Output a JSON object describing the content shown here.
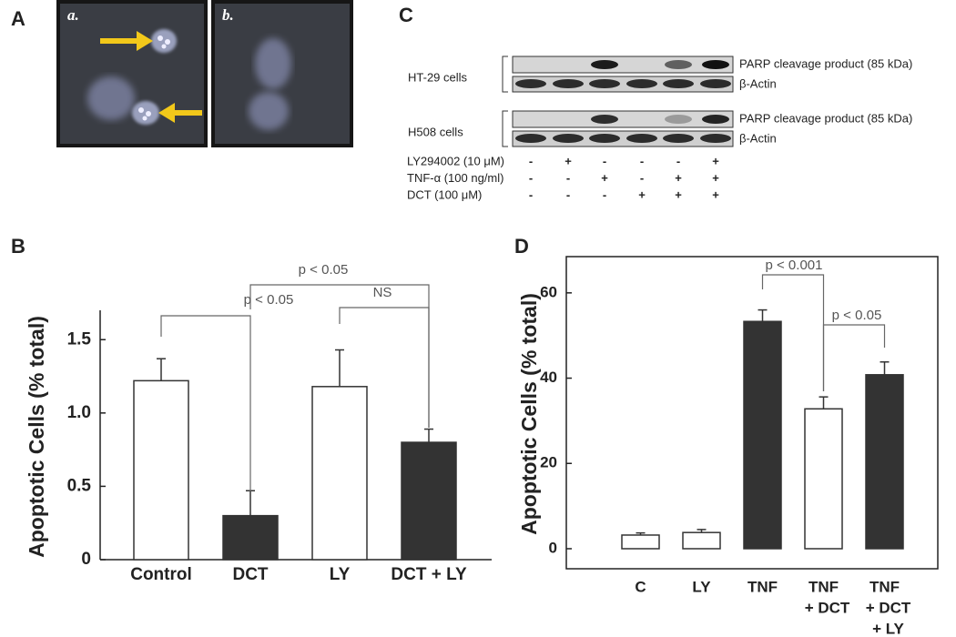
{
  "panels": {
    "A": {
      "label": "A",
      "images": [
        "a.",
        "b."
      ]
    },
    "C": {
      "label": "C",
      "cell_lines": [
        {
          "name": "HT-29 cells",
          "bands": [
            "PARP cleavage product (85 kDa)",
            "β-Actin"
          ]
        },
        {
          "name": "H508 cells",
          "bands": [
            "PARP cleavage product (85 kDa)",
            "β-Actin"
          ]
        }
      ],
      "treatments": [
        {
          "label": "LY294002 (10 μM)",
          "signs": [
            "-",
            "+",
            "-",
            "-",
            "-",
            "+"
          ]
        },
        {
          "label": "TNF-α (100 ng/ml)",
          "signs": [
            "-",
            "-",
            "+",
            "-",
            "+",
            "+"
          ]
        },
        {
          "label": "DCT (100 μM)",
          "signs": [
            "-",
            "-",
            "-",
            "+",
            "+",
            "+"
          ]
        }
      ]
    }
  },
  "chart_data": [
    {
      "type": "bar",
      "panel": "B",
      "ylabel": "Apoptotic Cells (% total)",
      "categories": [
        [
          "Control"
        ],
        [
          "DCT"
        ],
        [
          "LY"
        ],
        [
          "DCT + LY"
        ]
      ],
      "values": [
        1.22,
        0.3,
        1.18,
        0.8
      ],
      "errors": [
        0.15,
        0.17,
        0.25,
        0.09
      ],
      "colors": [
        "#ffffff",
        "#333333",
        "#ffffff",
        "#333333"
      ],
      "ylim": [
        0,
        1.7
      ],
      "yticks": [
        0,
        0.5,
        {
          "value": 1,
          "label": "1.0"
        },
        1.5
      ],
      "brackets": [
        "p < 0.05",
        "p < 0.05",
        "NS"
      ],
      "frame": false
    },
    {
      "type": "bar",
      "panel": "D",
      "ylabel": "Apoptotic Cells (% total)",
      "categories": [
        [
          "C"
        ],
        [
          "LY"
        ],
        [
          "TNF"
        ],
        [
          "TNF",
          "+ DCT"
        ],
        [
          "TNF",
          "+ DCT",
          "+ LY"
        ]
      ],
      "values": [
        3.2,
        3.8,
        53.3,
        32.8,
        40.8
      ],
      "errors": [
        0.5,
        0.7,
        2.7,
        2.8,
        3.0
      ],
      "colors": [
        "#ffffff",
        "#ffffff",
        "#333333",
        "#ffffff",
        "#333333"
      ],
      "ylim": [
        -4.7,
        68.5
      ],
      "yticks": [
        0,
        20,
        40,
        60
      ],
      "brackets": [
        "p < 0.001",
        "p < 0.05"
      ],
      "frame": true
    }
  ]
}
